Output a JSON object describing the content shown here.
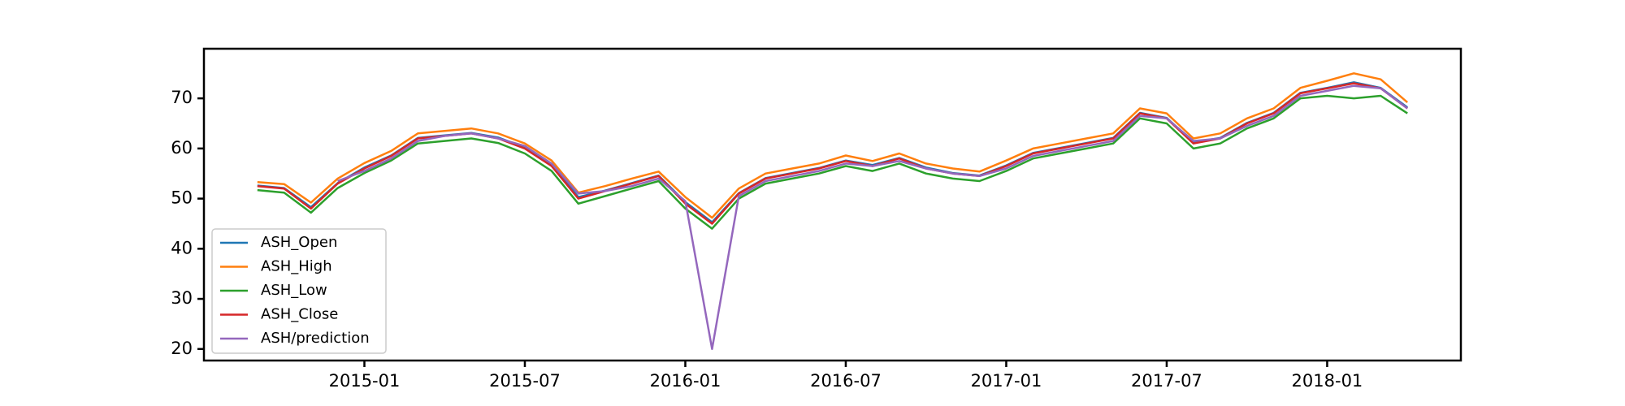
{
  "chart_data": {
    "type": "line",
    "x": [
      "2014-09",
      "2014-10",
      "2014-11",
      "2014-12",
      "2015-01",
      "2015-02",
      "2015-03",
      "2015-04",
      "2015-05",
      "2015-06",
      "2015-07",
      "2015-08",
      "2015-09",
      "2015-10",
      "2015-11",
      "2015-12",
      "2016-01",
      "2016-02",
      "2016-03",
      "2016-04",
      "2016-05",
      "2016-06",
      "2016-07",
      "2016-08",
      "2016-09",
      "2016-10",
      "2016-11",
      "2016-12",
      "2017-01",
      "2017-02",
      "2017-03",
      "2017-04",
      "2017-05",
      "2017-06",
      "2017-07",
      "2017-08",
      "2017-09",
      "2017-10",
      "2017-11",
      "2017-12",
      "2018-01",
      "2018-02",
      "2018-03",
      "2018-04"
    ],
    "xlim": [
      "2014-07",
      "2018-06"
    ],
    "xticks": [
      "2015-01",
      "2015-07",
      "2016-01",
      "2016-07",
      "2017-01",
      "2017-07",
      "2018-01"
    ],
    "ylim": [
      17.7,
      79.9
    ],
    "yticks": [
      20,
      30,
      40,
      50,
      60,
      70
    ],
    "legend": "lower left",
    "series": [
      {
        "name": "ASH_Open",
        "color": "#1f77b4",
        "values": [
          52.6,
          52.1,
          48.3,
          53.1,
          56.2,
          58.6,
          62.1,
          62.6,
          63.1,
          62.2,
          60.2,
          56.8,
          50.3,
          51.6,
          53.1,
          54.6,
          49.3,
          45.3,
          51.1,
          54.1,
          55.1,
          56.1,
          57.6,
          56.7,
          58.1,
          56.2,
          55.1,
          54.6,
          56.6,
          59.1,
          60.1,
          61.1,
          62.1,
          67.1,
          66.1,
          61.2,
          62.1,
          65.1,
          67.1,
          71.1,
          72.1,
          73.2,
          72.1,
          68.2
        ]
      },
      {
        "name": "ASH_High",
        "color": "#ff7f0e",
        "values": [
          53.3,
          52.9,
          49.2,
          54.0,
          57.1,
          59.5,
          63.0,
          63.5,
          64.0,
          63.0,
          61.0,
          57.6,
          51.2,
          52.5,
          54.0,
          55.4,
          50.3,
          46.2,
          52.0,
          55.0,
          56.0,
          57.0,
          58.6,
          57.5,
          59.0,
          57.0,
          56.0,
          55.4,
          57.6,
          60.0,
          61.0,
          62.0,
          63.0,
          68.0,
          67.0,
          62.0,
          63.0,
          66.0,
          68.0,
          72.1,
          73.5,
          75.0,
          73.8,
          69.2
        ]
      },
      {
        "name": "ASH_Low",
        "color": "#2ca02c",
        "values": [
          51.7,
          51.2,
          47.2,
          52.1,
          55.1,
          57.6,
          61.0,
          61.5,
          62.0,
          61.1,
          59.0,
          55.5,
          49.0,
          50.5,
          52.0,
          53.5,
          48.0,
          44.0,
          50.0,
          53.0,
          54.0,
          55.0,
          56.5,
          55.5,
          57.0,
          55.0,
          54.0,
          53.5,
          55.5,
          58.0,
          59.0,
          60.0,
          61.0,
          66.0,
          65.0,
          60.0,
          61.0,
          64.0,
          66.0,
          70.0,
          70.5,
          70.0,
          70.5,
          67.0
        ]
      },
      {
        "name": "ASH_Close",
        "color": "#d62728",
        "values": [
          52.5,
          52,
          48,
          53,
          56,
          58.5,
          62,
          62.5,
          63,
          62,
          60,
          56.5,
          50,
          51.5,
          53,
          54.5,
          49,
          45,
          51,
          54,
          55,
          56,
          57.5,
          56.5,
          58,
          56,
          55,
          54.5,
          56.5,
          59,
          60,
          61,
          62,
          67,
          66,
          61,
          62,
          65,
          67,
          71,
          72,
          73,
          72,
          68
        ]
      },
      {
        "name": "ASH/prediction",
        "color": "#9467bd",
        "values": [
          null,
          null,
          null,
          53.5,
          55.5,
          58,
          61.5,
          62.5,
          63,
          62,
          60.5,
          57,
          51,
          51.5,
          52.5,
          54,
          49.5,
          20,
          50.5,
          53.5,
          54.5,
          55.5,
          57,
          56.5,
          57.5,
          56,
          55,
          54.5,
          56,
          58.5,
          59.5,
          60.5,
          61.5,
          66.5,
          66,
          61.5,
          62,
          64.5,
          66.5,
          70.5,
          71.5,
          72.5,
          72,
          68
        ]
      }
    ]
  }
}
